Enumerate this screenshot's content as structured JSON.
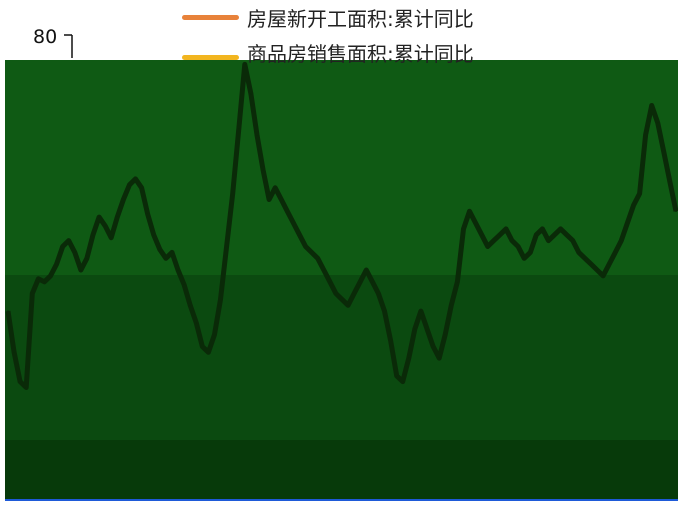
{
  "chart_data": {
    "type": "line",
    "title": "",
    "xlabel": "",
    "ylabel": "",
    "ylim": [
      -60,
      80
    ],
    "yticks": [
      {
        "value": 80,
        "label": "80"
      }
    ],
    "legend_position": "top",
    "grid": false,
    "series": [
      {
        "name": "房屋新开工面积:累计同比",
        "color": "#E8823A",
        "values": [
          -14,
          -28,
          -38,
          -40,
          -8,
          -3,
          -4,
          -2,
          2,
          8,
          10,
          6,
          0,
          4,
          12,
          18,
          15,
          11,
          18,
          24,
          29,
          31,
          28,
          19,
          12,
          7,
          4,
          6,
          0,
          -5,
          -12,
          -18,
          -26,
          -28,
          -22,
          -10,
          8,
          26,
          48,
          70,
          60,
          46,
          34,
          24,
          28,
          24,
          20,
          16,
          12,
          8,
          6,
          4,
          0,
          -4,
          -8,
          -10,
          -12,
          -8,
          -4,
          0,
          -4,
          -8,
          -14,
          -24,
          -36,
          -38,
          -30,
          -20,
          -14,
          -20,
          -26,
          -30,
          -22,
          -12,
          -4,
          14,
          20,
          16,
          12,
          8,
          10,
          12,
          14,
          10,
          8,
          4,
          6,
          12,
          14,
          10,
          12,
          14,
          12,
          10,
          6,
          4,
          2,
          0,
          -2,
          2,
          6,
          10,
          16,
          22,
          26,
          46,
          56,
          50,
          40,
          30,
          20
        ]
      },
      {
        "name": "商品房销售面积:累计同比",
        "color": "#F2B51F",
        "values": []
      }
    ]
  }
}
